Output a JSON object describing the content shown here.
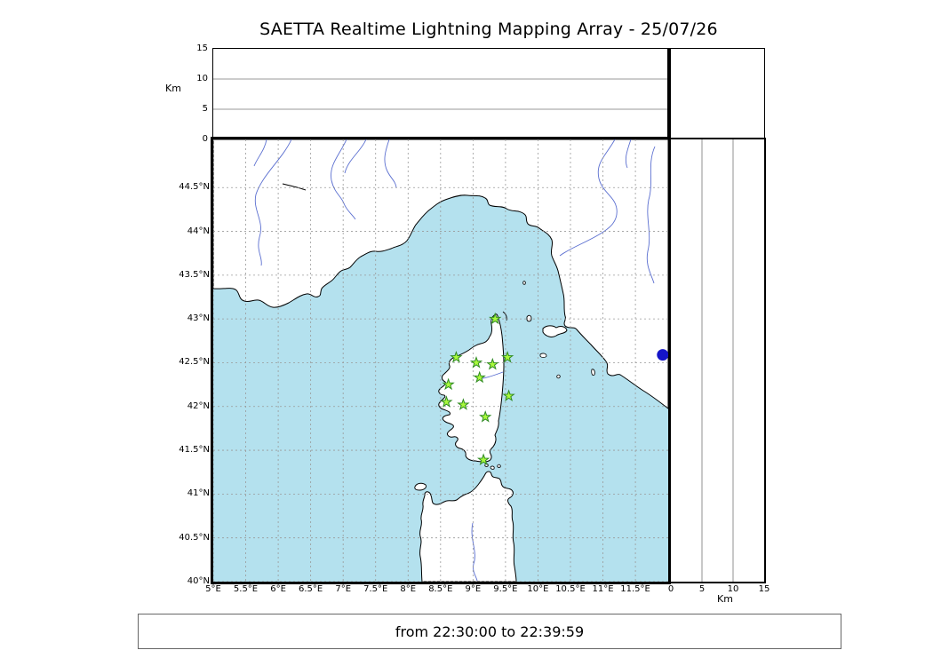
{
  "chart_data": {
    "type": "scatter",
    "title": "SAETTA Realtime Lightning Mapping Array - 25/07/26",
    "footer": "from 22:30:00 to 22:39:59",
    "map_panel": {
      "xlim": [
        5,
        12.005
      ],
      "ylim": [
        40,
        45.05
      ],
      "xticks": [
        5,
        5.5,
        6,
        6.5,
        7,
        7.5,
        8,
        8.5,
        9,
        9.5,
        10,
        10.5,
        11,
        11.5
      ],
      "xtick_labels": [
        "5°E",
        "5.5°E",
        "6°E",
        "6.5°E",
        "7°E",
        "7.5°E",
        "8°E",
        "8.5°E",
        "9°E",
        "9.5°E",
        "10°E",
        "10.5°E",
        "11°E",
        "11.5°E"
      ],
      "yticks": [
        44.5,
        44,
        43.5,
        43,
        42.5,
        42,
        41.5,
        41,
        40.5,
        40
      ],
      "ytick_labels": [
        "44.5°N",
        "44°N",
        "43.5°N",
        "43°N",
        "42.5°N",
        "42°N",
        "41.5°N",
        "41°N",
        "40.5°N",
        "40°N"
      ],
      "grid": "dashed"
    },
    "alt_lon_panel": {
      "ylabel": "Km",
      "ylim": [
        0,
        15
      ],
      "yticks": [
        0,
        5,
        10,
        15
      ],
      "points": []
    },
    "alt_lat_panel": {
      "xlabel": "Km",
      "xlim": [
        0,
        15
      ],
      "xticks": [
        0,
        5,
        10,
        15
      ],
      "points": []
    },
    "stations": [
      {
        "lon": 9.34,
        "lat": 43.0
      },
      {
        "lon": 8.74,
        "lat": 42.56
      },
      {
        "lon": 9.05,
        "lat": 42.5
      },
      {
        "lon": 9.3,
        "lat": 42.48
      },
      {
        "lon": 9.53,
        "lat": 42.56
      },
      {
        "lon": 9.1,
        "lat": 42.33
      },
      {
        "lon": 8.62,
        "lat": 42.25
      },
      {
        "lon": 9.55,
        "lat": 42.12
      },
      {
        "lon": 8.59,
        "lat": 42.05
      },
      {
        "lon": 8.85,
        "lat": 42.02
      },
      {
        "lon": 9.19,
        "lat": 41.88
      },
      {
        "lon": 9.16,
        "lat": 41.39
      }
    ],
    "edge_marker": {
      "lon": 11.92,
      "lat": 42.59,
      "color": "#1515c8"
    },
    "colors": {
      "sea": "#b4e1ee",
      "land": "#ffffff",
      "coast": "#000000",
      "river": "#5b6fd0",
      "grid": "#999999",
      "station_fill": "#a9f93c",
      "station_edge": "#2f8a22"
    }
  }
}
